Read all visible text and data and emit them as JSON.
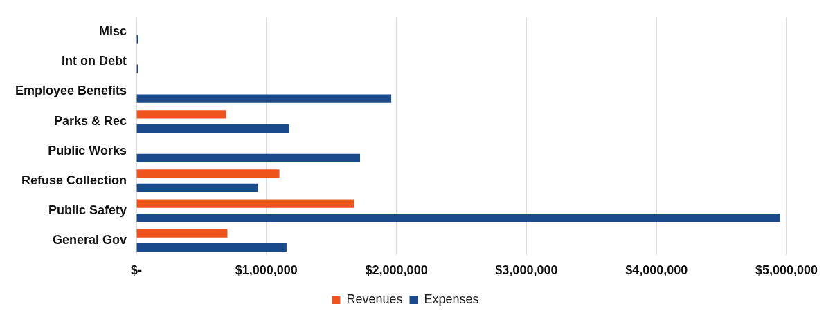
{
  "chart_data": {
    "type": "bar",
    "orientation": "horizontal",
    "categories": [
      "Misc",
      "Int on Debt",
      "Employee Benefits",
      "Parks & Rec",
      "Public Works",
      "Refuse Collection",
      "Public Safety",
      "General Gov"
    ],
    "series": [
      {
        "name": "Revenues",
        "color": "#f0541e",
        "values": [
          null,
          null,
          null,
          690000,
          null,
          1100000,
          1675000,
          700000
        ]
      },
      {
        "name": "Expenses",
        "color": "#1a4a8a",
        "values": [
          15000,
          12000,
          1960000,
          1175000,
          1720000,
          935000,
          4950000,
          1155000
        ]
      }
    ],
    "xlim": [
      0,
      5000000
    ],
    "xticks": [
      {
        "value": 0,
        "label": "$-"
      },
      {
        "value": 1000000,
        "label": "$1,000,000"
      },
      {
        "value": 2000000,
        "label": "$2,000,000"
      },
      {
        "value": 3000000,
        "label": "$3,000,000"
      },
      {
        "value": 4000000,
        "label": "$4,000,000"
      },
      {
        "value": 5000000,
        "label": "$5,000,000"
      }
    ],
    "grid": "x",
    "legend": "bottom"
  }
}
